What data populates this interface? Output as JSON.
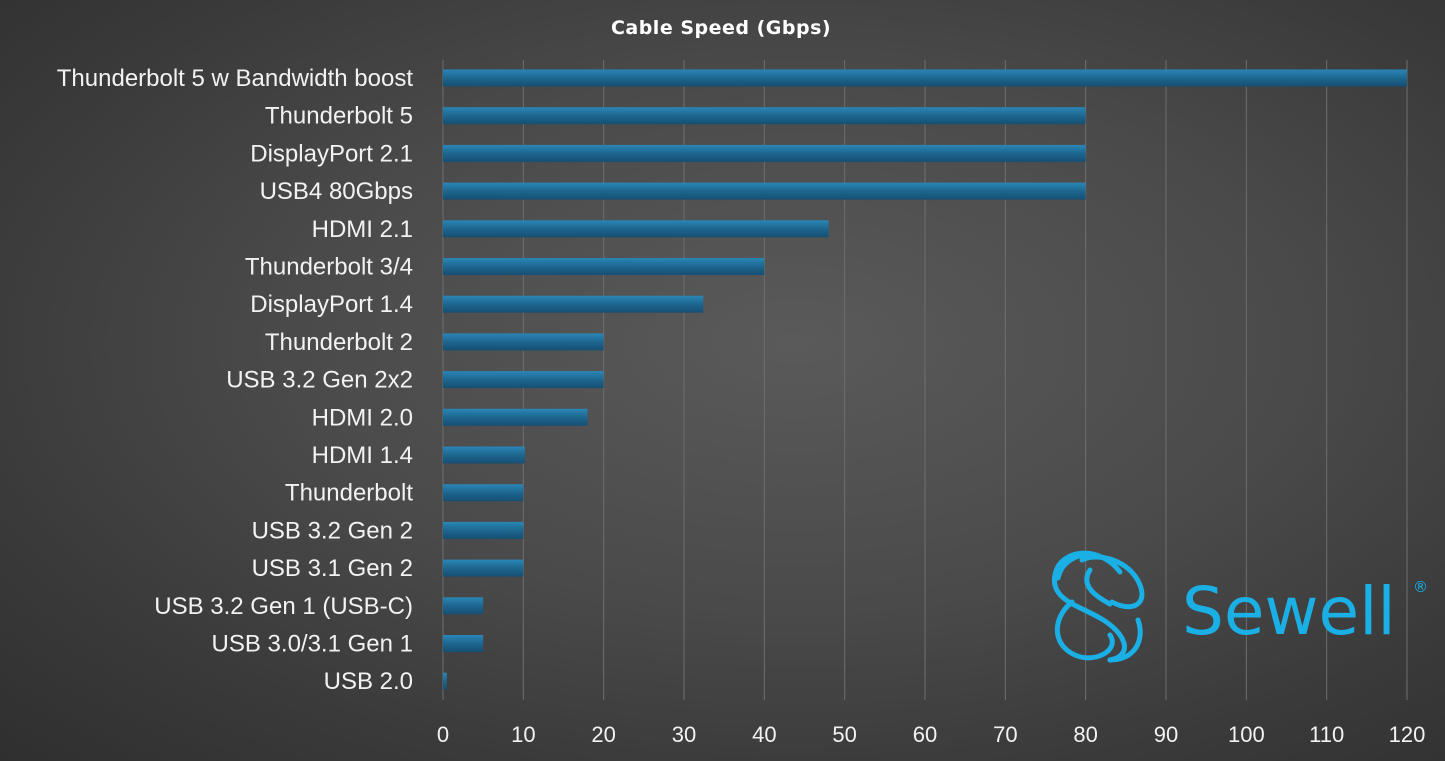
{
  "chart_data": {
    "type": "bar",
    "orientation": "horizontal",
    "title": "Cable Speed (Gbps)",
    "xlabel": "",
    "ylabel": "",
    "categories": [
      "Thunderbolt 5 w Bandwidth boost",
      "Thunderbolt 5",
      "DisplayPort 2.1",
      "USB4 80Gbps",
      "HDMI 2.1",
      "Thunderbolt 3/4",
      "DisplayPort 1.4",
      "Thunderbolt 2",
      "USB 3.2 Gen 2x2",
      "HDMI 2.0",
      "HDMI 1.4",
      "Thunderbolt",
      "USB 3.2 Gen 2",
      "USB 3.1 Gen 2",
      "USB 3.2 Gen 1 (USB-C)",
      "USB 3.0/3.1 Gen 1",
      "USB 2.0"
    ],
    "values": [
      120,
      80,
      80,
      80,
      48,
      40,
      32.4,
      20,
      20,
      18,
      10.2,
      10,
      10,
      10,
      5,
      5,
      0.48
    ],
    "xlim": [
      0,
      120
    ],
    "xticks": [
      "0",
      "10",
      "20",
      "30",
      "40",
      "50",
      "60",
      "70",
      "80",
      "90",
      "100",
      "110",
      "120"
    ],
    "grid": "vertical",
    "legend": "none",
    "bar_color": "#1f6a94"
  },
  "logo": {
    "text": "Sewell",
    "mark": "®",
    "color": "#1ab0e6",
    "icon": "sewell-s-chain-icon"
  }
}
